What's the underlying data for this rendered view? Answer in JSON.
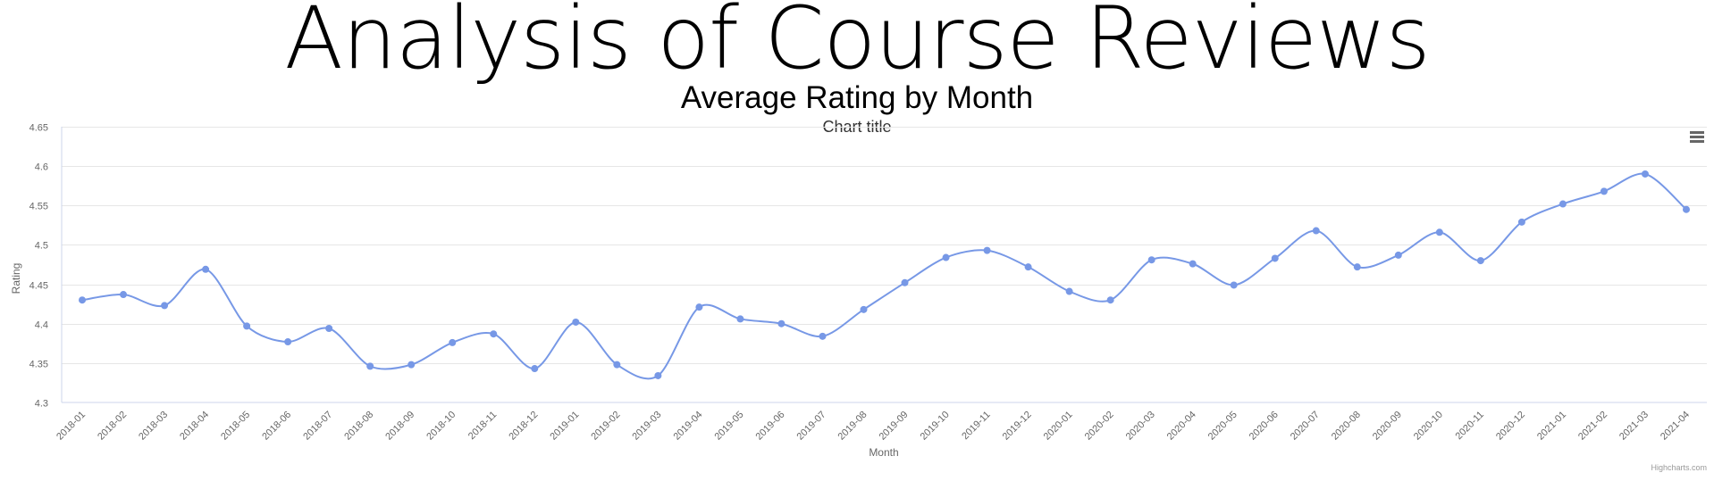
{
  "header": {
    "title": "Analysis of Course Reviews",
    "subtitle": "Average Rating by Month"
  },
  "menu": {
    "icon": "hamburger-menu-icon"
  },
  "credits": "Highcharts.com",
  "colors": {
    "series": "#7798e6",
    "grid": "#e6e6e6",
    "axis_line": "#ccd6eb",
    "label": "#666666"
  },
  "chart_data": {
    "type": "line",
    "title": "Chart title",
    "xlabel": "Month",
    "ylabel": "Rating",
    "ylim": [
      4.3,
      4.65
    ],
    "yticks": [
      "4.3",
      "4.35",
      "4.4",
      "4.45",
      "4.5",
      "4.55",
      "4.6",
      "4.65"
    ],
    "grid": true,
    "smooth": true,
    "categories": [
      "2018-01",
      "2018-02",
      "2018-03",
      "2018-04",
      "2018-05",
      "2018-06",
      "2018-07",
      "2018-08",
      "2018-09",
      "2018-10",
      "2018-11",
      "2018-12",
      "2019-01",
      "2019-02",
      "2019-03",
      "2019-04",
      "2019-05",
      "2019-06",
      "2019-07",
      "2019-08",
      "2019-09",
      "2019-10",
      "2019-11",
      "2019-12",
      "2020-01",
      "2020-02",
      "2020-03",
      "2020-04",
      "2020-05",
      "2020-06",
      "2020-07",
      "2020-08",
      "2020-09",
      "2020-10",
      "2020-11",
      "2020-12",
      "2021-01",
      "2021-02",
      "2021-03",
      "2021-04"
    ],
    "series": [
      {
        "values": [
          4.43,
          4.437,
          4.423,
          4.469,
          4.397,
          4.377,
          4.394,
          4.346,
          4.348,
          4.376,
          4.387,
          4.343,
          4.402,
          4.348,
          4.334,
          4.421,
          4.406,
          4.4,
          4.384,
          4.418,
          4.452,
          4.484,
          4.493,
          4.472,
          4.441,
          4.43,
          4.481,
          4.476,
          4.449,
          4.483,
          4.518,
          4.472,
          4.487,
          4.516,
          4.48,
          4.529,
          4.552,
          4.568,
          4.59,
          4.545
        ]
      }
    ]
  }
}
